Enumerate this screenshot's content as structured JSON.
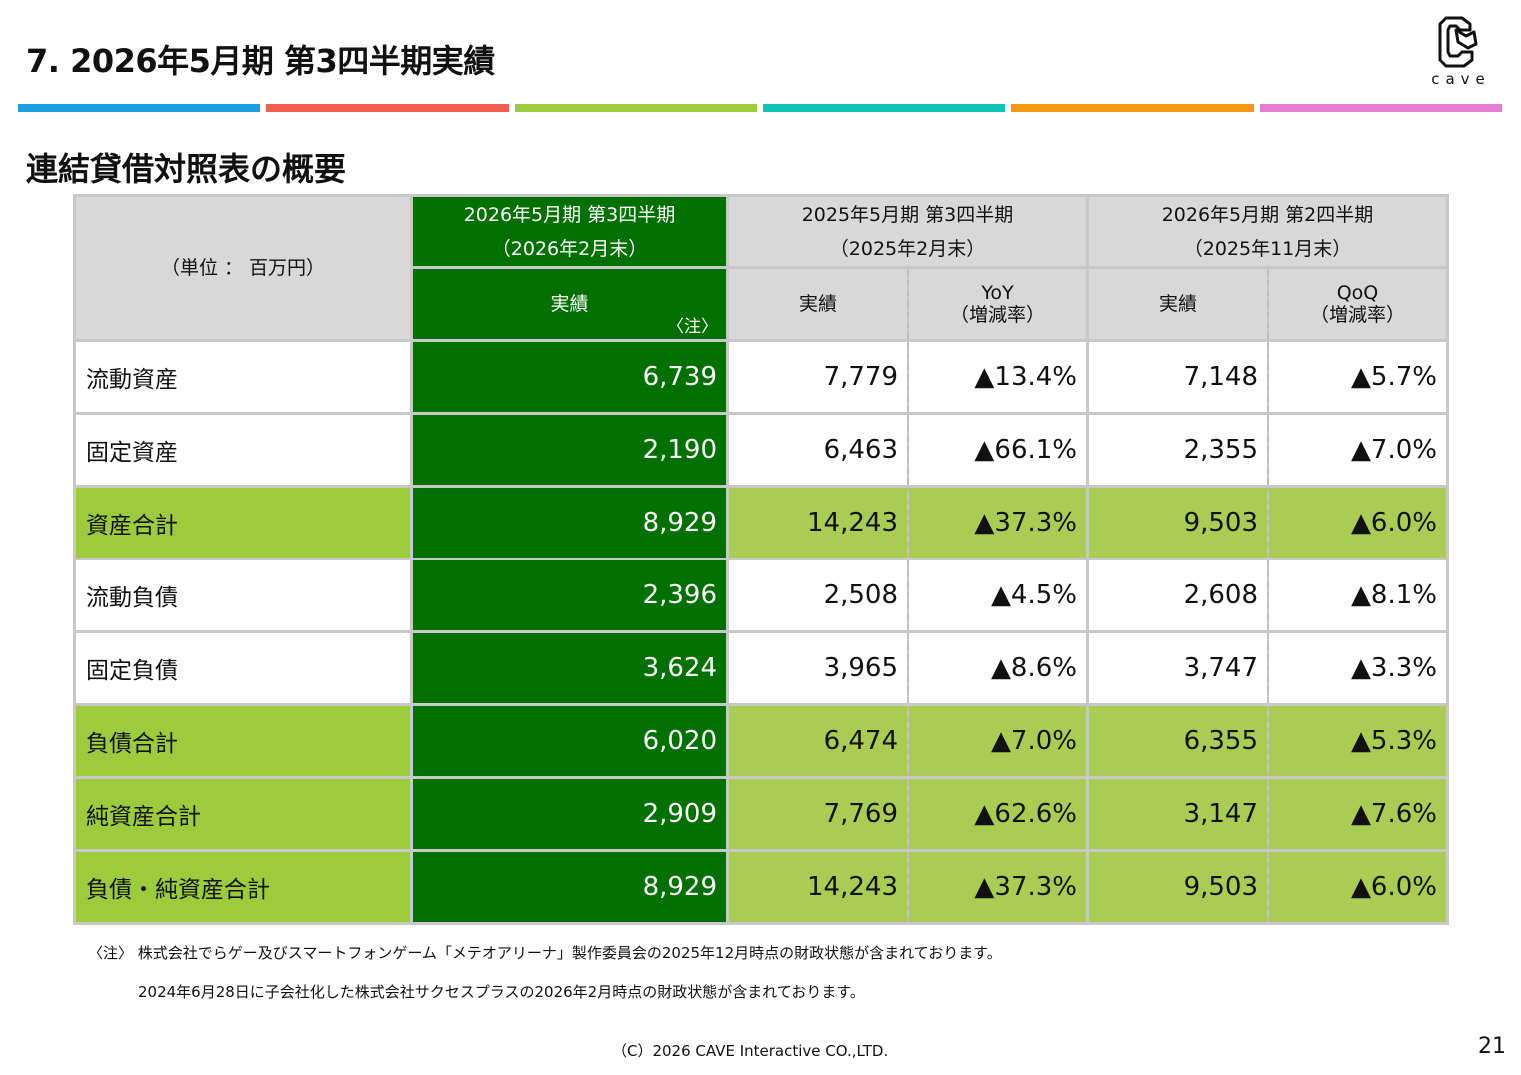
{
  "slide": {
    "title": "7.  2026年5月期  第3四半期実績",
    "subtitle": "連結貸借対照表の概要",
    "logo_text": "cave",
    "stripe_colors": [
      "#1a9fe0",
      "#f0604f",
      "#9ccb3b",
      "#10c4b4",
      "#f39a10",
      "#e57ed2"
    ]
  },
  "table": {
    "unit_label": "（単位 ： 百万円）",
    "groups": [
      {
        "line1": "2026年5月期  第3四半期",
        "line2": "（2026年2月末）"
      },
      {
        "line1": "2025年5月期  第3四半期",
        "line2": "（2025年2月末）"
      },
      {
        "line1": "2026年5月期  第2四半期",
        "line2": "（2025年11月末）"
      }
    ],
    "subheaders": {
      "actual": "実績",
      "note_mark": "〈注〉",
      "yoy_line1": "YoY",
      "yoy_line2": "（増減率）",
      "qoq_line1": "QoQ",
      "qoq_line2": "（増減率）"
    },
    "rows": [
      {
        "label": "流動資産",
        "current": "6,739",
        "prev_year": "7,779",
        "yoy": "▲13.4%",
        "prev_q": "7,148",
        "qoq": "▲5.7%",
        "highlight": false
      },
      {
        "label": "固定資産",
        "current": "2,190",
        "prev_year": "6,463",
        "yoy": "▲66.1%",
        "prev_q": "2,355",
        "qoq": "▲7.0%",
        "highlight": false
      },
      {
        "label": "資産合計",
        "current": "8,929",
        "prev_year": "14,243",
        "yoy": "▲37.3%",
        "prev_q": "9,503",
        "qoq": "▲6.0%",
        "highlight": true
      },
      {
        "label": "流動負債",
        "current": "2,396",
        "prev_year": "2,508",
        "yoy": "▲4.5%",
        "prev_q": "2,608",
        "qoq": "▲8.1%",
        "highlight": false
      },
      {
        "label": "固定負債",
        "current": "3,624",
        "prev_year": "3,965",
        "yoy": "▲8.6%",
        "prev_q": "3,747",
        "qoq": "▲3.3%",
        "highlight": false
      },
      {
        "label": "負債合計",
        "current": "6,020",
        "prev_year": "6,474",
        "yoy": "▲7.0%",
        "prev_q": "6,355",
        "qoq": "▲5.3%",
        "highlight": true
      },
      {
        "label": "純資産合計",
        "current": "2,909",
        "prev_year": "7,769",
        "yoy": "▲62.6%",
        "prev_q": "3,147",
        "qoq": "▲7.6%",
        "highlight": true
      },
      {
        "label": "負債・純資産合計",
        "current": "8,929",
        "prev_year": "14,243",
        "yoy": "▲37.3%",
        "prev_q": "9,503",
        "qoq": "▲6.0%",
        "highlight": true
      }
    ]
  },
  "notes": {
    "line1": "〈注〉  株式会社でらゲー及びスマートフォンゲーム「メテオアリーナ」製作委員会の2025年12月時点の財政状態が含まれております。",
    "line2": "2024年6月28日に子会社化した株式会社サクセスプラスの2026年2月時点の財政状態が含まれております。"
  },
  "footer": {
    "copyright": "（C）2026 CAVE Interactive CO.,LTD.",
    "page_number": "21"
  }
}
